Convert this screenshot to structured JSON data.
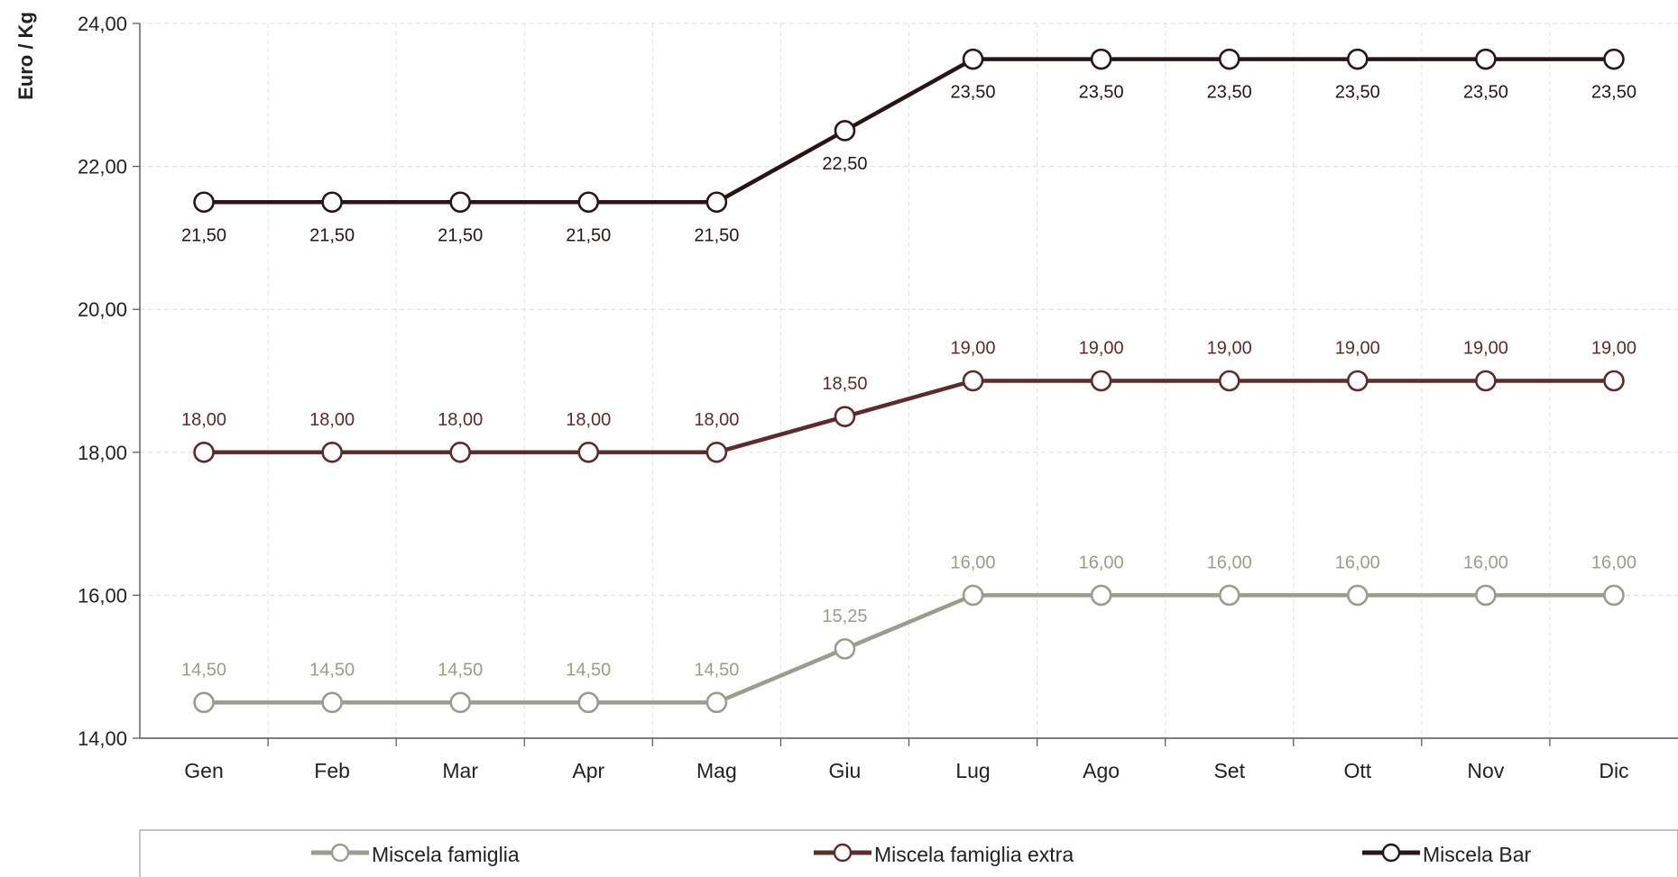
{
  "chart_data": {
    "type": "line",
    "title": "",
    "xlabel": "",
    "ylabel": "Euro / Kg",
    "ylim": [
      14,
      24
    ],
    "yticks": [
      "14,00",
      "16,00",
      "18,00",
      "20,00",
      "22,00",
      "24,00"
    ],
    "ytick_values": [
      14,
      16,
      18,
      20,
      22,
      24
    ],
    "categories": [
      "Gen",
      "Feb",
      "Mar",
      "Apr",
      "Mag",
      "Giu",
      "Lug",
      "Ago",
      "Set",
      "Ott",
      "Nov",
      "Dic"
    ],
    "grid": true,
    "legend_position": "bottom",
    "series": [
      {
        "name": "Miscela famiglia",
        "color": "#9c9c8c",
        "label_position": "above",
        "values": [
          14.5,
          14.5,
          14.5,
          14.5,
          14.5,
          15.25,
          16,
          16,
          16,
          16,
          16,
          16
        ],
        "labels": [
          "14,50",
          "14,50",
          "14,50",
          "14,50",
          "14,50",
          "15,25",
          "16,00",
          "16,00",
          "16,00",
          "16,00",
          "16,00",
          "16,00"
        ]
      },
      {
        "name": "Miscela famiglia extra",
        "color": "#5e2a2a",
        "label_position": "above",
        "values": [
          18,
          18,
          18,
          18,
          18,
          18.5,
          19,
          19,
          19,
          19,
          19,
          19
        ],
        "labels": [
          "18,00",
          "18,00",
          "18,00",
          "18,00",
          "18,00",
          "18,50",
          "19,00",
          "19,00",
          "19,00",
          "19,00",
          "19,00",
          "19,00"
        ]
      },
      {
        "name": "Miscela Bar",
        "color": "#2a1416",
        "label_position": "below",
        "values": [
          21.5,
          21.5,
          21.5,
          21.5,
          21.5,
          22.5,
          23.5,
          23.5,
          23.5,
          23.5,
          23.5,
          23.5
        ],
        "labels": [
          "21,50",
          "21,50",
          "21,50",
          "21,50",
          "21,50",
          "22,50",
          "23,50",
          "23,50",
          "23,50",
          "23,50",
          "23,50",
          "23,50"
        ]
      }
    ]
  }
}
